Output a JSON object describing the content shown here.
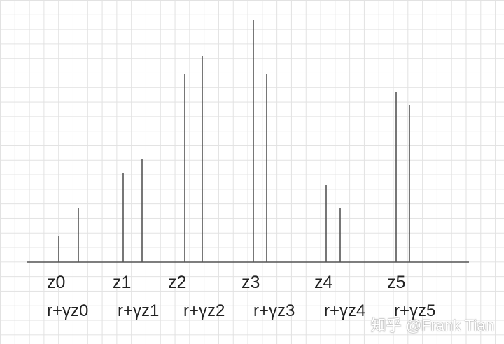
{
  "diagram": {
    "z_labels": [
      "z0",
      "z1",
      "z2",
      "z3",
      "z4",
      "z5"
    ],
    "return_labels": [
      "r+γz0",
      "r+γz1",
      "r+γz2",
      "r+γz3",
      "r+γz4",
      "r+γz5"
    ]
  },
  "watermark": "知乎 @Frank Tian"
}
